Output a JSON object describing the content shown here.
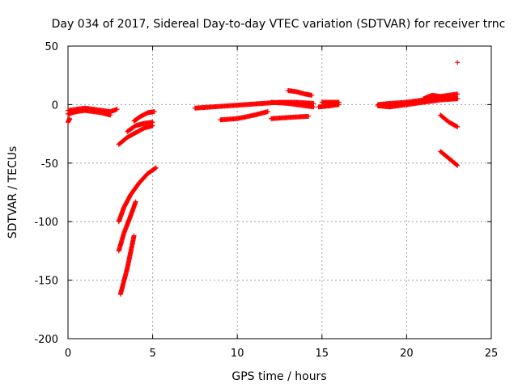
{
  "chart_data": {
    "type": "scatter",
    "title": "Day 034 of 2017, Sidereal Day-to-day VTEC variation (SDTVAR) for receiver trnc",
    "xlabel": "GPS time / hours",
    "ylabel": "SDTVAR / TECUs",
    "xlim": [
      0,
      25
    ],
    "ylim": [
      -200,
      50
    ],
    "x_ticks": [
      "0",
      "5",
      "10",
      "15",
      "20",
      "25"
    ],
    "x_tick_values": [
      0,
      5,
      10,
      15,
      20,
      25
    ],
    "y_ticks": [
      "50",
      "0",
      "-50",
      "-100",
      "-150",
      "-200"
    ],
    "y_tick_values": [
      50,
      0,
      -50,
      -100,
      -150,
      -200
    ],
    "grid": true,
    "marker": "plus",
    "color": "#ff0000",
    "tracks": [
      {
        "x": [
          0.0,
          0.5,
          1.0,
          1.5,
          2.0,
          2.5,
          2.9
        ],
        "y": [
          -5,
          -4,
          -3,
          -4,
          -5,
          -6,
          -4
        ]
      },
      {
        "x": [
          0.0,
          0.5,
          1.0,
          1.5,
          2.0,
          2.5
        ],
        "y": [
          -8,
          -6,
          -5,
          -6,
          -7,
          -9
        ]
      },
      {
        "x": [
          0.0,
          0.1
        ],
        "y": [
          -15,
          -12
        ]
      },
      {
        "x": [
          3.0,
          3.5,
          4.0,
          4.5,
          5.0
        ],
        "y": [
          -34,
          -28,
          -24,
          -20,
          -18
        ]
      },
      {
        "x": [
          3.5,
          4.0,
          4.5,
          5.0
        ],
        "y": [
          -23,
          -18,
          -16,
          -15
        ]
      },
      {
        "x": [
          3.9,
          4.3,
          4.7,
          5.1
        ],
        "y": [
          -14,
          -10,
          -7,
          -6
        ]
      },
      {
        "x": [
          3.0,
          3.3,
          3.7,
          4.2,
          4.7,
          5.2
        ],
        "y": [
          -100,
          -88,
          -77,
          -67,
          -59,
          -54
        ]
      },
      {
        "x": [
          3.0,
          3.3,
          3.7,
          4.0
        ],
        "y": [
          -125,
          -110,
          -95,
          -83
        ]
      },
      {
        "x": [
          3.1,
          3.5,
          3.9
        ],
        "y": [
          -162,
          -140,
          -112
        ]
      },
      {
        "x": [
          7.5,
          8.5,
          9.5,
          10.5,
          11.5,
          12.5,
          13.5,
          14.5
        ],
        "y": [
          -3,
          -2,
          -1,
          0,
          1,
          2,
          2,
          1
        ]
      },
      {
        "x": [
          9.0,
          10.0,
          11.0,
          11.8
        ],
        "y": [
          -13,
          -12,
          -9,
          -6
        ]
      },
      {
        "x": [
          12.0,
          13.0,
          14.2
        ],
        "y": [
          -12,
          -11,
          -10
        ]
      },
      {
        "x": [
          12.0,
          13.0,
          14.0,
          14.5
        ],
        "y": [
          2,
          1,
          -1,
          -2
        ]
      },
      {
        "x": [
          13.0,
          13.5,
          14.0,
          14.4
        ],
        "y": [
          12,
          11,
          9,
          8
        ]
      },
      {
        "x": [
          14.8,
          15.5,
          16.0
        ],
        "y": [
          -2,
          -1,
          0
        ]
      },
      {
        "x": [
          15.0,
          15.5,
          16.0
        ],
        "y": [
          2,
          2,
          2
        ]
      },
      {
        "x": [
          18.3,
          19.0,
          20.0,
          21.0,
          22.0,
          23.0
        ],
        "y": [
          -1,
          -2,
          0,
          2,
          4,
          5
        ]
      },
      {
        "x": [
          18.3,
          19.0,
          20.0,
          21.0,
          22.0,
          23.0
        ],
        "y": [
          0,
          1,
          2,
          4,
          6,
          5
        ]
      },
      {
        "x": [
          21.0,
          21.5,
          22.0,
          23.0
        ],
        "y": [
          5,
          8,
          7,
          9
        ]
      },
      {
        "x": [
          22.0,
          22.5,
          23.0
        ],
        "y": [
          -9,
          -15,
          -19
        ]
      },
      {
        "x": [
          22.0,
          22.5,
          23.0
        ],
        "y": [
          -40,
          -46,
          -52
        ]
      },
      {
        "x": [
          23.0
        ],
        "y": [
          36
        ]
      }
    ]
  }
}
